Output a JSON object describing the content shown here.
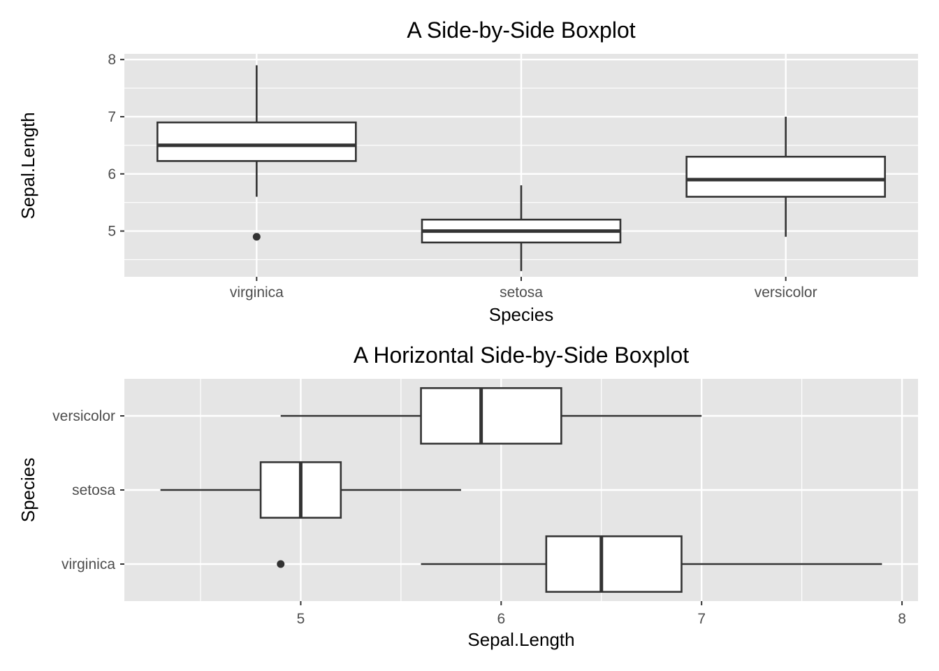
{
  "chart_data": [
    {
      "type": "boxplot",
      "orientation": "vertical",
      "title": "A Side-by-Side Boxplot",
      "xlabel": "Species",
      "ylabel": "Sepal.Length",
      "categories": [
        "virginica",
        "setosa",
        "versicolor"
      ],
      "ylim": [
        4.2,
        8.1
      ],
      "yticks": [
        "5",
        "6",
        "7",
        "8"
      ],
      "grid": true,
      "boxes": [
        {
          "category": "virginica",
          "whisker_low": 5.6,
          "q1": 6.225,
          "median": 6.5,
          "q3": 6.9,
          "whisker_high": 7.9,
          "outliers": [
            4.9
          ]
        },
        {
          "category": "setosa",
          "whisker_low": 4.3,
          "q1": 4.8,
          "median": 5.0,
          "q3": 5.2,
          "whisker_high": 5.8,
          "outliers": []
        },
        {
          "category": "versicolor",
          "whisker_low": 4.9,
          "q1": 5.6,
          "median": 5.9,
          "q3": 6.3,
          "whisker_high": 7.0,
          "outliers": []
        }
      ]
    },
    {
      "type": "boxplot",
      "orientation": "horizontal",
      "title": "A Horizontal Side-by-Side Boxplot",
      "xlabel": "Sepal.Length",
      "ylabel": "Species",
      "categories": [
        "virginica",
        "setosa",
        "versicolor"
      ],
      "xlim": [
        4.12,
        8.08
      ],
      "xticks": [
        "5",
        "6",
        "7",
        "8"
      ],
      "grid": true,
      "boxes": [
        {
          "category": "virginica",
          "whisker_low": 5.6,
          "q1": 6.225,
          "median": 6.5,
          "q3": 6.9,
          "whisker_high": 7.9,
          "outliers": [
            4.9
          ]
        },
        {
          "category": "setosa",
          "whisker_low": 4.3,
          "q1": 4.8,
          "median": 5.0,
          "q3": 5.2,
          "whisker_high": 5.8,
          "outliers": []
        },
        {
          "category": "versicolor",
          "whisker_low": 4.9,
          "q1": 5.6,
          "median": 5.9,
          "q3": 6.3,
          "whisker_high": 7.0,
          "outliers": []
        }
      ]
    }
  ],
  "colors": {
    "panel_background": "#e5e5e5",
    "grid_line": "#ffffff",
    "box_fill": "#ffffff",
    "box_stroke": "#333333",
    "tick_text": "#4d4d4d",
    "title_text": "#000000"
  }
}
